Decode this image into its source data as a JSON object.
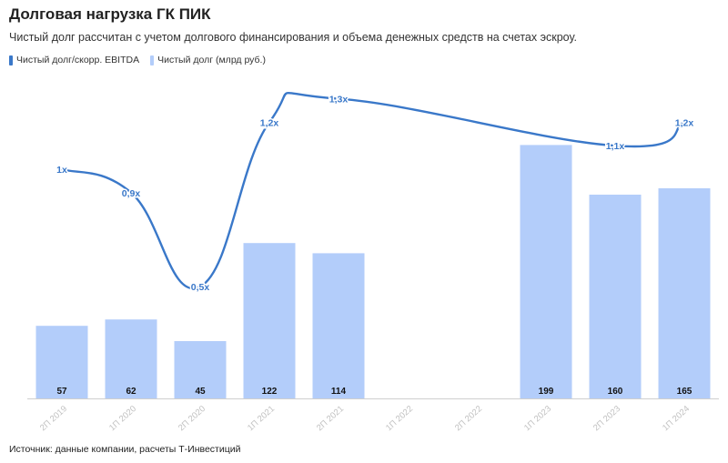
{
  "header": {
    "title": "Долговая нагрузка ГК ПИК",
    "subtitle": "Чистый долг рассчитан с учетом долгового финансирования и объема денежных средств на счетах эскроу."
  },
  "source": "Источник: данные компании, расчеты Т-Инвестиций",
  "colors": {
    "line": "#3a78c9",
    "bar": "#b3cdfa",
    "grid": "#e8e8e8",
    "tick": "#c2c2c2"
  },
  "chart_data": {
    "type": "bar",
    "categories": [
      "2П 2019",
      "1П 2020",
      "2П 2020",
      "1П 2021",
      "2П 2021",
      "1П 2022",
      "2П 2022",
      "1П 2023",
      "2П 2023",
      "1П 2024"
    ],
    "series": [
      {
        "name": "Чистый долг (млрд руб.)",
        "type": "bar",
        "values": [
          57,
          62,
          45,
          122,
          114,
          null,
          null,
          199,
          160,
          165
        ],
        "labels": [
          "57",
          "62",
          "45",
          "122",
          "114",
          "",
          "",
          "199",
          "160",
          "165"
        ]
      },
      {
        "name": "Чистый долг/скорр. EBITDA",
        "type": "line",
        "values": [
          1.0,
          0.9,
          0.5,
          1.2,
          1.3,
          null,
          null,
          null,
          1.1,
          1.2
        ],
        "labels": [
          "1x",
          "0,9x",
          "0,5x",
          "1,2x",
          "1,3x",
          "",
          "",
          "",
          "1,1x",
          "1,2x"
        ]
      }
    ],
    "bar_range": [
      0,
      200
    ],
    "line_range": [
      0,
      1.3
    ],
    "legend_position": "top-left",
    "grid": false
  }
}
